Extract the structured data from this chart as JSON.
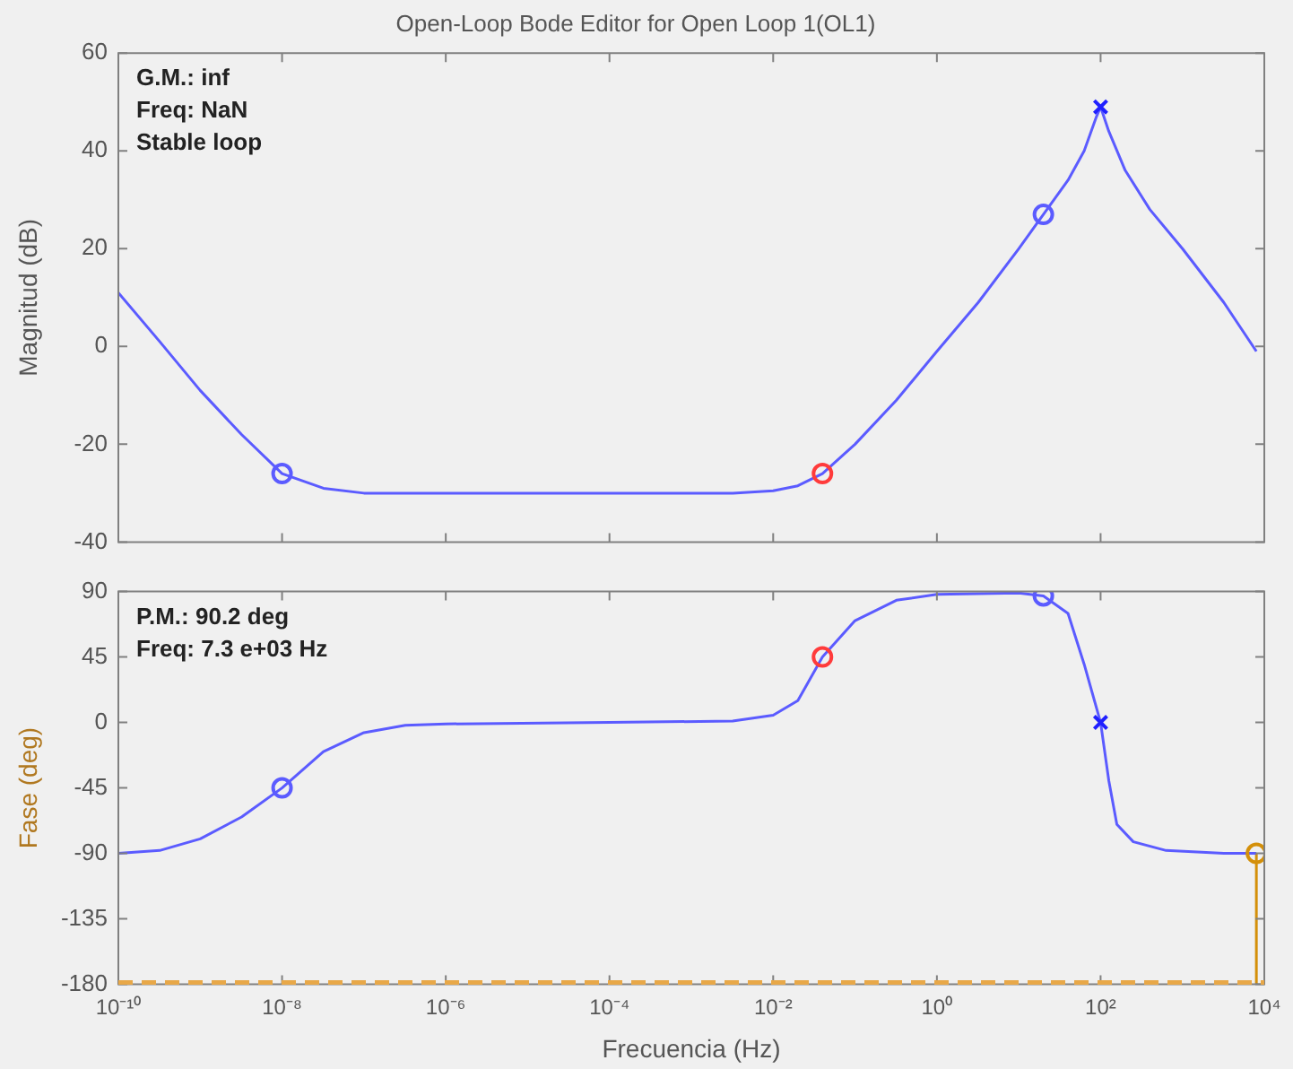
{
  "chart_data": [
    {
      "type": "line",
      "title": "Open-Loop Bode Editor for Open Loop 1(OL1)",
      "ylabel": "Magnitud (dB)",
      "log": "x",
      "tick_labels": "y",
      "grid": false,
      "legend": false,
      "xlim": [
        1e-10,
        10000
      ],
      "xticks": [
        {
          "value": 1e-10,
          "label": null
        },
        {
          "value": 1e-08,
          "label": null
        },
        {
          "value": 1e-06,
          "label": null
        },
        {
          "value": 0.0001,
          "label": null
        },
        {
          "value": 0.01,
          "label": null
        },
        {
          "value": 1,
          "label": null
        },
        {
          "value": 100,
          "label": null
        },
        {
          "value": 10000,
          "label": null
        }
      ],
      "ylim": [
        -40,
        60
      ],
      "yticks": [
        -40,
        -20,
        0,
        20,
        40,
        60
      ],
      "annotations": [
        "G.M.: inf",
        "Freq: NaN",
        "Stable loop"
      ],
      "series": [
        {
          "type": "line",
          "color": "#5b5bff",
          "marker": "none",
          "x": [
            1e-10,
            3.2e-10,
            1e-09,
            3.2e-09,
            1e-08,
            3.2e-08,
            1e-07,
            1e-06,
            0.0001,
            0.0032,
            0.01,
            0.02,
            0.04,
            0.1,
            0.32,
            1,
            3.2,
            10,
            20,
            40,
            63,
            89,
            100,
            126,
            200,
            400,
            1000,
            3200,
            8000
          ],
          "values": [
            11,
            1,
            -9,
            -18,
            -26,
            -29,
            -30,
            -30,
            -30,
            -30,
            -29.5,
            -28.5,
            -26,
            -20,
            -11,
            -1,
            9,
            20,
            27,
            34,
            40,
            47,
            49,
            44,
            36,
            28,
            20,
            9,
            -1
          ]
        },
        {
          "type": "scatter",
          "color": "#5b5bff",
          "marker": "circle",
          "x": [
            1e-08,
            20
          ],
          "values": [
            -26,
            27
          ]
        },
        {
          "type": "scatter",
          "color": "#ff3b3b",
          "marker": "circle",
          "x": [
            0.04
          ],
          "values": [
            -26
          ]
        },
        {
          "type": "scatter",
          "color": "#2020ff",
          "marker": "cross",
          "x": [
            100
          ],
          "values": [
            49
          ]
        }
      ]
    },
    {
      "type": "line",
      "xlabel": "Frecuencia (Hz)",
      "ylabel": "Fase (deg)",
      "log": "x",
      "grid": false,
      "legend": false,
      "xlim": [
        1e-10,
        10000
      ],
      "xticks": [
        {
          "value": 1e-10,
          "label": "10⁻¹⁰"
        },
        {
          "value": 1e-08,
          "label": "10⁻⁸"
        },
        {
          "value": 1e-06,
          "label": "10⁻⁶"
        },
        {
          "value": 0.0001,
          "label": "10⁻⁴"
        },
        {
          "value": 0.01,
          "label": "10⁻²"
        },
        {
          "value": 1,
          "label": "10⁰"
        },
        {
          "value": 100,
          "label": "10²"
        },
        {
          "value": 10000,
          "label": "10⁴"
        }
      ],
      "ylim": [
        -180,
        90
      ],
      "yticks": [
        -180,
        -135,
        -90,
        -45,
        0,
        45,
        90
      ],
      "annotations": [
        "P.M.: 90.2 deg",
        "Freq: 7.3 e+03 Hz"
      ],
      "ref_lines": [
        {
          "axis": "y",
          "value": -180,
          "color": "#e8a848",
          "line_style": "dashed"
        }
      ],
      "series": [
        {
          "type": "line",
          "color": "#5b5bff",
          "marker": "none",
          "x": [
            1e-10,
            3.2e-10,
            1e-09,
            3.2e-09,
            1e-08,
            3.2e-08,
            1e-07,
            3.2e-07,
            1e-06,
            0.0001,
            0.0032,
            0.01,
            0.02,
            0.04,
            0.1,
            0.32,
            1,
            10,
            20,
            40,
            63,
            100,
            126,
            158,
            251,
            631,
            3200,
            8000
          ],
          "values": [
            -90,
            -88,
            -80,
            -65,
            -45,
            -20,
            -7,
            -2,
            -1,
            0,
            1,
            5,
            15,
            45,
            70,
            84,
            88,
            89,
            87,
            75,
            40,
            0,
            -40,
            -70,
            -82,
            -88,
            -90,
            -90
          ]
        },
        {
          "type": "scatter",
          "color": "#5b5bff",
          "marker": "circle",
          "x": [
            1e-08,
            20
          ],
          "values": [
            -45,
            87
          ]
        },
        {
          "type": "scatter",
          "color": "#ff3b3b",
          "marker": "circle",
          "x": [
            0.04
          ],
          "values": [
            45
          ]
        },
        {
          "type": "scatter",
          "color": "#2020ff",
          "marker": "cross",
          "x": [
            100
          ],
          "values": [
            0
          ]
        },
        {
          "type": "line",
          "color": "#d4900a",
          "marker": "none",
          "x": [
            8000,
            8000
          ],
          "values": [
            -180,
            -90
          ]
        },
        {
          "type": "scatter",
          "color": "#d4900a",
          "marker": "circle",
          "x": [
            8000
          ],
          "values": [
            -90
          ]
        }
      ]
    }
  ]
}
